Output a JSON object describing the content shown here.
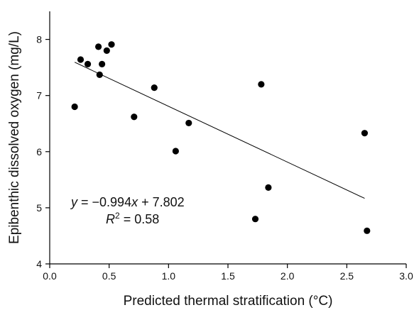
{
  "chart_data": {
    "type": "scatter",
    "title": "",
    "xlabel": "Predicted thermal stratification (°C)",
    "ylabel": "Epibenthic dissolved oxygen (mg/L)",
    "xlim": [
      0.0,
      3.0
    ],
    "ylim": [
      4,
      8.5
    ],
    "x_ticks": [
      "0.0",
      "0.5",
      "1.0",
      "1.5",
      "2.0",
      "2.5",
      "3.0"
    ],
    "y_ticks": [
      "4",
      "5",
      "6",
      "7",
      "8"
    ],
    "grid": false,
    "points": [
      {
        "x": 0.21,
        "y": 6.8
      },
      {
        "x": 0.26,
        "y": 7.64
      },
      {
        "x": 0.32,
        "y": 7.56
      },
      {
        "x": 0.41,
        "y": 7.87
      },
      {
        "x": 0.42,
        "y": 7.37
      },
      {
        "x": 0.44,
        "y": 7.56
      },
      {
        "x": 0.48,
        "y": 7.8
      },
      {
        "x": 0.52,
        "y": 7.91
      },
      {
        "x": 0.71,
        "y": 6.62
      },
      {
        "x": 0.88,
        "y": 7.14
      },
      {
        "x": 1.06,
        "y": 6.01
      },
      {
        "x": 1.17,
        "y": 6.51
      },
      {
        "x": 1.73,
        "y": 4.8
      },
      {
        "x": 1.78,
        "y": 7.2
      },
      {
        "x": 1.84,
        "y": 5.36
      },
      {
        "x": 2.65,
        "y": 6.33
      },
      {
        "x": 2.67,
        "y": 4.59
      }
    ],
    "fit_line": {
      "slope": -0.994,
      "intercept": 7.802,
      "x_range": [
        0.21,
        2.65
      ]
    },
    "annotation": {
      "line1_y": "y",
      "line1_eq": " = ",
      "line1_minus": "−",
      "line1_coef": "0.994",
      "line1_x": "x",
      "line1_plus": " + 7.802",
      "line2_r": "R",
      "line2_sup": "2",
      "line2_val": " = 0.58"
    }
  }
}
